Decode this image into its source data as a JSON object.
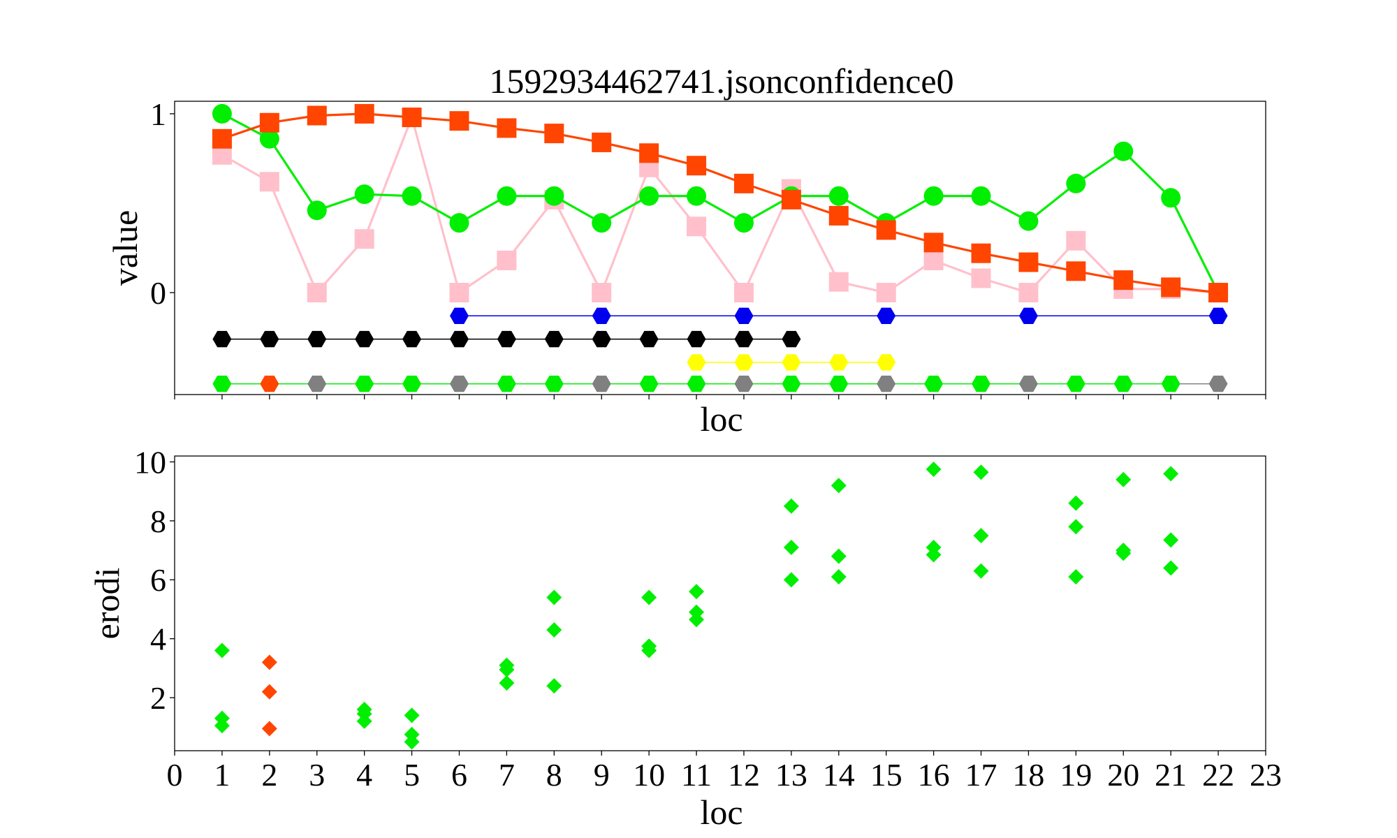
{
  "figure": {
    "title": "1592934462741.jsonconfidence0"
  },
  "chart_data": [
    {
      "type": "line",
      "title": "1592934462741.jsonconfidence0",
      "xlabel": "loc",
      "ylabel": "value",
      "xlim": [
        0,
        23
      ],
      "ylim": [
        -0.57,
        1.07
      ],
      "xticks": [],
      "yticks": [
        0,
        1
      ],
      "grid": false,
      "colors": {
        "orange": "#ff4500",
        "pink": "#ffc0cb",
        "green": "#00ee00",
        "blue": "#0000ee",
        "black": "#000000",
        "yellow": "#ffff00",
        "gray": "#808080"
      },
      "series": [
        {
          "style": "pink-square-line",
          "color": "#ffc0cb",
          "marker": "square",
          "x": [
            1,
            2,
            3,
            4,
            5,
            6,
            7,
            8,
            9,
            10,
            11,
            12,
            13,
            14,
            15,
            16,
            17,
            18,
            19,
            20,
            21,
            22
          ],
          "y": [
            0.77,
            0.62,
            0.0,
            0.3,
            0.98,
            0.0,
            0.18,
            0.52,
            0.0,
            0.7,
            0.37,
            0.0,
            0.58,
            0.06,
            0.0,
            0.18,
            0.08,
            0.0,
            0.29,
            0.02,
            0.02,
            0.0
          ]
        },
        {
          "style": "green-circle-line",
          "color": "#00ee00",
          "marker": "circle",
          "x": [
            1,
            2,
            3,
            4,
            5,
            6,
            7,
            8,
            9,
            10,
            11,
            12,
            13,
            14,
            15,
            16,
            17,
            18,
            19,
            20,
            21,
            22
          ],
          "y": [
            1.0,
            0.86,
            0.46,
            0.55,
            0.54,
            0.39,
            0.54,
            0.54,
            0.39,
            0.54,
            0.54,
            0.39,
            0.54,
            0.54,
            0.39,
            0.54,
            0.54,
            0.4,
            0.61,
            0.79,
            0.53,
            0.0
          ]
        },
        {
          "style": "orange-square-line",
          "color": "#ff4500",
          "marker": "square",
          "x": [
            1,
            2,
            3,
            4,
            5,
            6,
            7,
            8,
            9,
            10,
            11,
            12,
            13,
            14,
            15,
            16,
            17,
            18,
            19,
            20,
            21,
            22
          ],
          "y": [
            0.86,
            0.95,
            0.99,
            1.0,
            0.98,
            0.96,
            0.92,
            0.89,
            0.84,
            0.78,
            0.71,
            0.61,
            0.52,
            0.43,
            0.35,
            0.28,
            0.22,
            0.17,
            0.12,
            0.07,
            0.03,
            0.0
          ]
        },
        {
          "style": "blue-hexagon-line",
          "color": "#0000ee",
          "marker": "hexagon",
          "x": [
            6,
            9,
            12,
            15,
            18,
            22
          ],
          "y": [
            -0.13,
            -0.13,
            -0.13,
            -0.13,
            -0.13,
            -0.13
          ]
        },
        {
          "style": "black-hexagon-line",
          "color": "#000000",
          "marker": "hexagon",
          "x": [
            1,
            2,
            3,
            4,
            5,
            6,
            7,
            8,
            9,
            10,
            11,
            12,
            13
          ],
          "y": [
            -0.26,
            -0.26,
            -0.26,
            -0.26,
            -0.26,
            -0.26,
            -0.26,
            -0.26,
            -0.26,
            -0.26,
            -0.26,
            -0.26,
            -0.26
          ]
        },
        {
          "style": "yellow-hexagon-line",
          "color": "#ffff00",
          "marker": "hexagon",
          "x": [
            11,
            12,
            13,
            14,
            15
          ],
          "y": [
            -0.39,
            -0.39,
            -0.39,
            -0.39,
            -0.39
          ]
        },
        {
          "style": "status-hexagon-line",
          "color": "#00ee00",
          "line_color": "#00ee00",
          "marker": "hexagon",
          "x": [
            1,
            2,
            3,
            4,
            5,
            6,
            7,
            8,
            9,
            10,
            11,
            12,
            13,
            14,
            15,
            16,
            17,
            18,
            19,
            20,
            21,
            22
          ],
          "y": [
            -0.51,
            -0.51,
            -0.51,
            -0.51,
            -0.51,
            -0.51,
            -0.51,
            -0.51,
            -0.51,
            -0.51,
            -0.51,
            -0.51,
            -0.51,
            -0.51,
            -0.51,
            -0.51,
            -0.51,
            -0.51,
            -0.51,
            -0.51,
            -0.51,
            -0.51
          ],
          "point_colors": [
            "#00ee00",
            "#ff4500",
            "#808080",
            "#00ee00",
            "#00ee00",
            "#808080",
            "#00ee00",
            "#00ee00",
            "#808080",
            "#00ee00",
            "#00ee00",
            "#808080",
            "#00ee00",
            "#00ee00",
            "#808080",
            "#00ee00",
            "#00ee00",
            "#808080",
            "#00ee00",
            "#00ee00",
            "#00ee00",
            "#808080"
          ]
        }
      ]
    },
    {
      "type": "scatter",
      "title": "",
      "xlabel": "loc",
      "ylabel": "erodi",
      "xlim": [
        0,
        23
      ],
      "ylim": [
        0.2,
        10.2
      ],
      "xticks": [
        0,
        1,
        2,
        3,
        4,
        5,
        6,
        7,
        8,
        9,
        10,
        11,
        12,
        13,
        14,
        15,
        16,
        17,
        18,
        19,
        20,
        21,
        22,
        23
      ],
      "yticks": [
        2,
        4,
        6,
        8,
        10
      ],
      "grid": false,
      "series": [
        {
          "style": "green-diamonds",
          "color": "#00ee00",
          "marker": "diamond",
          "points": [
            [
              1,
              3.6
            ],
            [
              1,
              1.3
            ],
            [
              1,
              1.05
            ],
            [
              4,
              1.6
            ],
            [
              4,
              1.45
            ],
            [
              4,
              1.2
            ],
            [
              5,
              1.4
            ],
            [
              5,
              0.75
            ],
            [
              5,
              0.5
            ],
            [
              7,
              3.1
            ],
            [
              7,
              2.95
            ],
            [
              7,
              2.5
            ],
            [
              8,
              5.4
            ],
            [
              8,
              4.3
            ],
            [
              8,
              2.4
            ],
            [
              10,
              5.4
            ],
            [
              10,
              3.75
            ],
            [
              10,
              3.6
            ],
            [
              11,
              5.6
            ],
            [
              11,
              4.9
            ],
            [
              11,
              4.65
            ],
            [
              13,
              8.5
            ],
            [
              13,
              7.1
            ],
            [
              13,
              6.0
            ],
            [
              14,
              9.2
            ],
            [
              14,
              6.8
            ],
            [
              14,
              6.1
            ],
            [
              16,
              9.75
            ],
            [
              16,
              7.1
            ],
            [
              16,
              6.85
            ],
            [
              17,
              9.65
            ],
            [
              17,
              7.5
            ],
            [
              17,
              6.3
            ],
            [
              19,
              8.6
            ],
            [
              19,
              7.8
            ],
            [
              19,
              6.1
            ],
            [
              20,
              9.4
            ],
            [
              20,
              7.0
            ],
            [
              20,
              6.9
            ],
            [
              21,
              9.6
            ],
            [
              21,
              7.35
            ],
            [
              21,
              6.4
            ]
          ]
        },
        {
          "style": "orange-diamonds",
          "color": "#ff4500",
          "marker": "diamond",
          "points": [
            [
              2,
              3.2
            ],
            [
              2,
              2.2
            ],
            [
              2,
              0.95
            ]
          ]
        }
      ]
    }
  ]
}
